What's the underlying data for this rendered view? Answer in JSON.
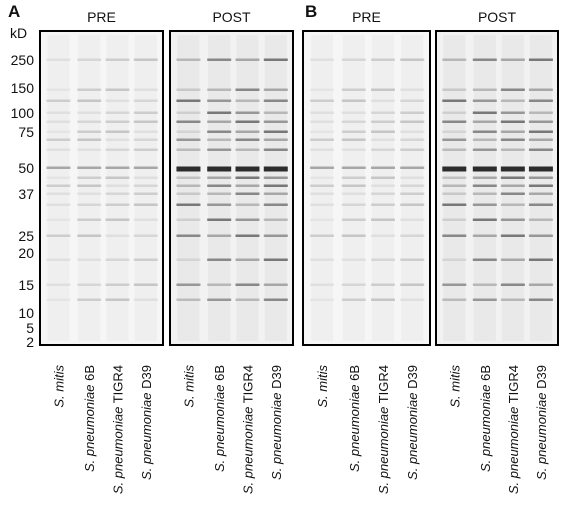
{
  "panels": [
    {
      "letter": "A",
      "gels": [
        "PRE",
        "POST"
      ]
    },
    {
      "letter": "B",
      "gels": [
        "PRE",
        "POST"
      ]
    }
  ],
  "marker_unit": "kD",
  "markers": [
    250,
    150,
    100,
    75,
    50,
    37,
    25,
    20,
    15,
    10,
    5,
    2
  ],
  "lanes": [
    {
      "species": "S. mitis",
      "strain": ""
    },
    {
      "species": "S. pneumoniae",
      "strain": "6B"
    },
    {
      "species": "S. pneumoniae",
      "strain": "TIGR4"
    },
    {
      "species": "S. pneumoniae",
      "strain": "D39"
    }
  ]
}
